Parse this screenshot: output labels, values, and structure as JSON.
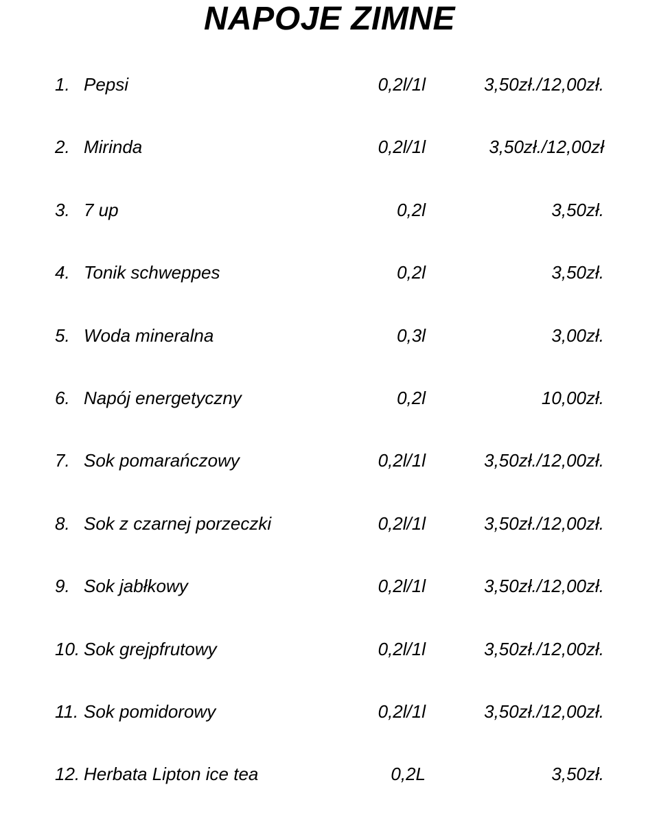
{
  "title": "NAPOJE ZIMNE",
  "typography": {
    "title_fontsize_pt": 36,
    "title_font_weight": "bold",
    "title_font_style": "italic",
    "body_fontsize_pt": 20,
    "body_font_style": "italic",
    "font_family": "Comic Sans MS",
    "text_color": "#000000",
    "background_color": "#ffffff"
  },
  "menu": {
    "type": "table",
    "columns": [
      "number",
      "name",
      "size",
      "price"
    ],
    "items": [
      {
        "num": "1.",
        "name": "Pepsi",
        "size": "0,2l/1l",
        "price": "3,50zł./12,00zł."
      },
      {
        "num": "2.",
        "name": "Mirinda",
        "size": "0,2l/1l",
        "price": "3,50zł./12,00zł"
      },
      {
        "num": "3.",
        "name": "7 up",
        "size": "0,2l",
        "price": "3,50zł."
      },
      {
        "num": "4.",
        "name": "Tonik schweppes",
        "size": "0,2l",
        "price": "3,50zł."
      },
      {
        "num": "5.",
        "name": "Woda mineralna",
        "size": "0,3l",
        "price": "3,00zł."
      },
      {
        "num": "6.",
        "name": "Napój energetyczny",
        "size": "0,2l",
        "price": "10,00zł."
      },
      {
        "num": "7.",
        "name": "Sok pomarańczowy",
        "size": "0,2l/1l",
        "price": "3,50zł./12,00zł."
      },
      {
        "num": "8.",
        "name": "Sok z czarnej porzeczki",
        "size": "0,2l/1l",
        "price": "3,50zł./12,00zł."
      },
      {
        "num": "9.",
        "name": "Sok jabłkowy",
        "size": "0,2l/1l",
        "price": "3,50zł./12,00zł."
      },
      {
        "num": "10.",
        "name": "Sok grejpfrutowy",
        "size": "0,2l/1l",
        "price": "3,50zł./12,00zł."
      },
      {
        "num": "11.",
        "name": "Sok pomidorowy",
        "size": "0,2l/1l",
        "price": "3,50zł./12,00zł."
      },
      {
        "num": "12.",
        "name": "Herbata Lipton ice tea",
        "size": "0,2L",
        "price": "3,50zł."
      }
    ]
  }
}
